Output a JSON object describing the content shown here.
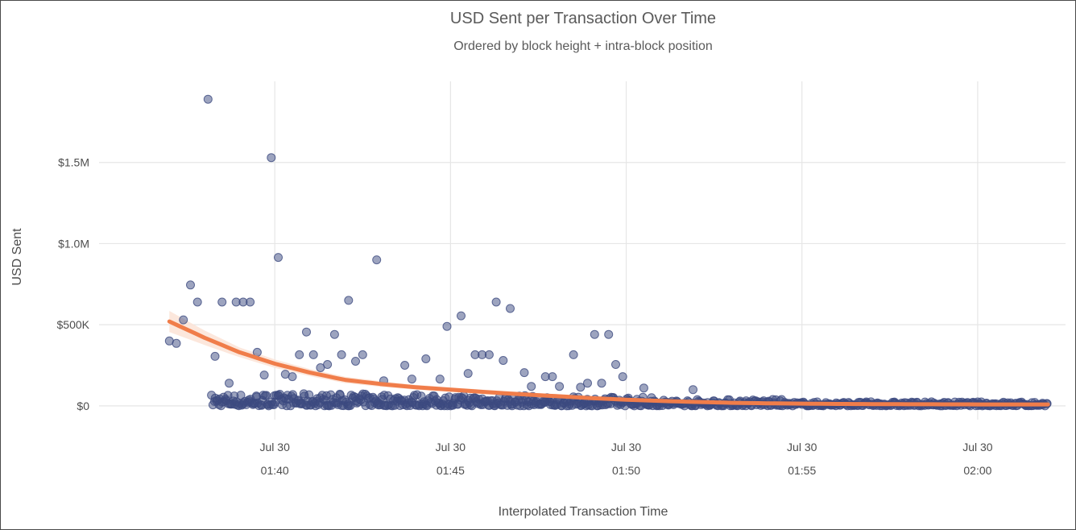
{
  "chart_data": {
    "type": "scatter",
    "title": "USD Sent per Transaction Over Time",
    "subtitle": "Ordered by block height + intra-block position",
    "xlabel": "Interpolated Transaction Time",
    "ylabel": "USD Sent",
    "x_ticks": [
      {
        "date": "Jul 30",
        "time": "01:40",
        "minutes": 100
      },
      {
        "date": "Jul 30",
        "time": "01:45",
        "minutes": 105
      },
      {
        "date": "Jul 30",
        "time": "01:50",
        "minutes": 110
      },
      {
        "date": "Jul 30",
        "time": "01:55",
        "minutes": 115
      },
      {
        "date": "Jul 30",
        "time": "02:00",
        "minutes": 120
      }
    ],
    "xlim_minutes": [
      95,
      122.5
    ],
    "y_ticks": [
      {
        "label": "$0",
        "value": 0
      },
      {
        "label": "$500K",
        "value": 500000
      },
      {
        "label": "$1.0M",
        "value": 1000000
      },
      {
        "label": "$1.5M",
        "value": 1500000
      }
    ],
    "ylim": [
      -85000,
      2000000
    ],
    "grid": true,
    "point_color": "#3c4a80",
    "trend_color": "#f07d4a",
    "band_color": "#fbe3d6",
    "outliers": [
      [
        97.0,
        400000
      ],
      [
        97.2,
        385000
      ],
      [
        97.4,
        530000
      ],
      [
        97.6,
        745000
      ],
      [
        97.8,
        640000
      ],
      [
        98.1,
        1890000
      ],
      [
        98.3,
        305000
      ],
      [
        98.5,
        640000
      ],
      [
        98.7,
        140000
      ],
      [
        98.9,
        640000
      ],
      [
        99.1,
        640000
      ],
      [
        99.3,
        640000
      ],
      [
        99.5,
        330000
      ],
      [
        99.7,
        190000
      ],
      [
        99.9,
        1530000
      ],
      [
        100.1,
        915000
      ],
      [
        100.3,
        195000
      ],
      [
        100.5,
        180000
      ],
      [
        100.7,
        315000
      ],
      [
        100.9,
        455000
      ],
      [
        101.1,
        315000
      ],
      [
        101.3,
        235000
      ],
      [
        101.5,
        255000
      ],
      [
        101.7,
        440000
      ],
      [
        101.9,
        315000
      ],
      [
        102.1,
        650000
      ],
      [
        102.3,
        275000
      ],
      [
        102.5,
        315000
      ],
      [
        102.9,
        900000
      ],
      [
        103.1,
        155000
      ],
      [
        103.7,
        250000
      ],
      [
        103.9,
        165000
      ],
      [
        104.3,
        290000
      ],
      [
        104.7,
        165000
      ],
      [
        104.9,
        490000
      ],
      [
        105.3,
        555000
      ],
      [
        105.5,
        200000
      ],
      [
        105.7,
        315000
      ],
      [
        105.9,
        315000
      ],
      [
        106.1,
        315000
      ],
      [
        106.3,
        640000
      ],
      [
        106.5,
        280000
      ],
      [
        106.7,
        600000
      ],
      [
        107.1,
        205000
      ],
      [
        107.3,
        120000
      ],
      [
        107.7,
        180000
      ],
      [
        107.9,
        180000
      ],
      [
        108.1,
        120000
      ],
      [
        108.5,
        315000
      ],
      [
        108.7,
        115000
      ],
      [
        108.9,
        140000
      ],
      [
        109.1,
        440000
      ],
      [
        109.3,
        140000
      ],
      [
        109.5,
        440000
      ],
      [
        109.7,
        255000
      ],
      [
        109.9,
        180000
      ],
      [
        110.5,
        110000
      ],
      [
        111.9,
        100000
      ]
    ],
    "bulk_band": [
      {
        "from": 98.2,
        "to": 104.2,
        "max": 75000
      },
      {
        "from": 104.2,
        "to": 107.5,
        "max": 65000
      },
      {
        "from": 107.5,
        "to": 111.0,
        "max": 55000
      },
      {
        "from": 111.0,
        "to": 114.5,
        "max": 40000
      },
      {
        "from": 114.5,
        "to": 122.0,
        "max": 25000
      }
    ],
    "trend": [
      [
        97.0,
        520000
      ],
      [
        98.0,
        420000
      ],
      [
        99.0,
        330000
      ],
      [
        100.0,
        260000
      ],
      [
        101.0,
        205000
      ],
      [
        102.0,
        160000
      ],
      [
        103.0,
        135000
      ],
      [
        104.0,
        115000
      ],
      [
        105.0,
        100000
      ],
      [
        106.0,
        85000
      ],
      [
        107.0,
        72000
      ],
      [
        108.0,
        60000
      ],
      [
        109.0,
        48000
      ],
      [
        110.0,
        38000
      ],
      [
        111.0,
        30000
      ],
      [
        112.0,
        24000
      ],
      [
        113.0,
        19000
      ],
      [
        114.0,
        16000
      ],
      [
        116.0,
        12000
      ],
      [
        118.0,
        10000
      ],
      [
        120.0,
        9000
      ],
      [
        122.0,
        9000
      ]
    ],
    "band_halfwidth": [
      [
        97.0,
        65000
      ],
      [
        98.0,
        45000
      ],
      [
        99.0,
        30000
      ],
      [
        101.0,
        22000
      ],
      [
        104.0,
        15000
      ],
      [
        108.0,
        12000
      ],
      [
        112.0,
        10000
      ],
      [
        116.0,
        10000
      ],
      [
        120.0,
        14000
      ],
      [
        122.0,
        22000
      ]
    ]
  }
}
